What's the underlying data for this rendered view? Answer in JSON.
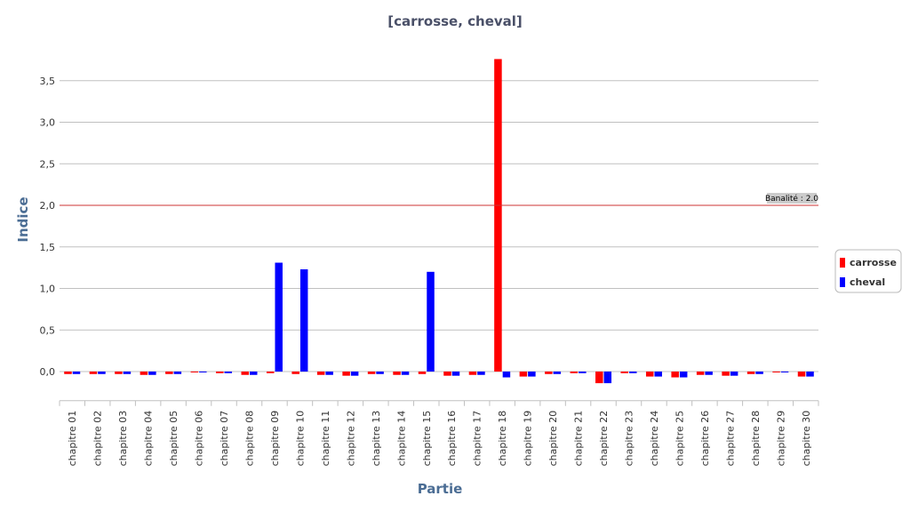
{
  "chart_data": {
    "type": "bar",
    "title": "[carrosse, cheval]",
    "xlabel": "Partie",
    "ylabel": "Indice",
    "ylim": [
      -0.35,
      3.9
    ],
    "yticks": [
      "0,0",
      "0,5",
      "1,0",
      "1,5",
      "2,0",
      "2,5",
      "3,0",
      "3,5"
    ],
    "ytick_values": [
      0,
      0.5,
      1.0,
      1.5,
      2.0,
      2.5,
      3.0,
      3.5
    ],
    "grid": true,
    "legend_position": "right",
    "categories": [
      "chapitre 01",
      "chapitre 02",
      "chapitre 03",
      "chapitre 04",
      "chapitre 05",
      "chapitre  06",
      "chapitre 07",
      "chapitre 08",
      "chapitre 09",
      "chapitre 10",
      "chapitre 11",
      "chapitre 12",
      "chapitre 13",
      "chapitre 14",
      "chapitre 15",
      "chapitre 16",
      "chapitre 17",
      "chapitre 18",
      "chapitre 19",
      "chapitre 20",
      "chapitre 21",
      "chapitre 22",
      "chapitre 23",
      "chapitre 24",
      "chapitre 25",
      "chapitre 26",
      "chapitre 27",
      "chapitre 28",
      "chapitre 29",
      "chapitre 30"
    ],
    "series": [
      {
        "name": "carrosse",
        "color": "#ff0000",
        "values": [
          -0.03,
          -0.03,
          -0.03,
          -0.04,
          -0.03,
          -0.01,
          -0.02,
          -0.04,
          -0.02,
          -0.03,
          -0.04,
          -0.05,
          -0.03,
          -0.04,
          -0.03,
          -0.05,
          -0.04,
          3.76,
          -0.06,
          -0.03,
          -0.02,
          -0.14,
          -0.02,
          -0.06,
          -0.07,
          -0.04,
          -0.05,
          -0.03,
          -0.01,
          -0.06
        ]
      },
      {
        "name": "cheval",
        "color": "#0000ff",
        "values": [
          -0.03,
          -0.03,
          -0.03,
          -0.04,
          -0.03,
          -0.01,
          -0.02,
          -0.04,
          1.31,
          1.23,
          -0.04,
          -0.05,
          -0.03,
          -0.04,
          1.2,
          -0.05,
          -0.04,
          -0.07,
          -0.06,
          -0.03,
          -0.02,
          -0.14,
          -0.02,
          -0.06,
          -0.07,
          -0.04,
          -0.05,
          -0.03,
          -0.01,
          -0.06
        ]
      }
    ],
    "reference_line": {
      "value": 2.0,
      "label": "Banalité : 2.0",
      "color": "#cc3333"
    }
  }
}
